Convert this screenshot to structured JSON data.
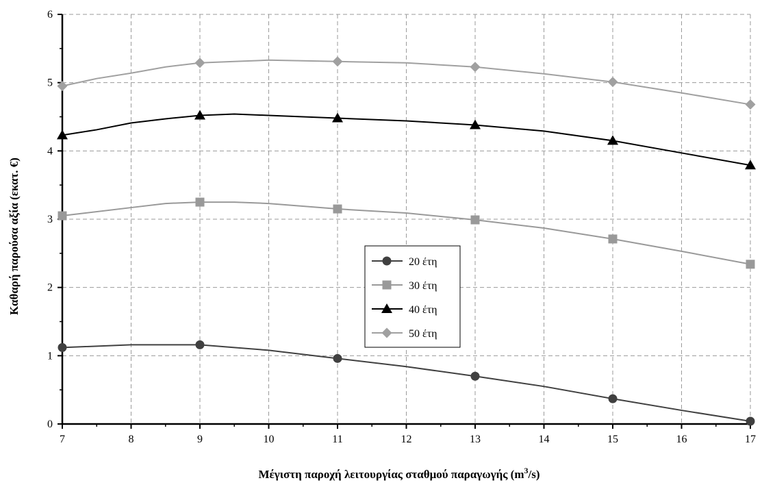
{
  "chart_data": {
    "type": "line",
    "xlabel": "Μέγιστη παροχή λειτουργίας σταθμού παραγωγής (m",
    "xlabel_sup": "3",
    "xlabel_tail": "/s)",
    "ylabel": "Καθαρή παρούσα αξία (εκατ. €)",
    "xlim": [
      7,
      17
    ],
    "ylim": [
      0,
      6
    ],
    "x_ticks": [
      7,
      8,
      9,
      10,
      11,
      12,
      13,
      14,
      15,
      16,
      17
    ],
    "y_ticks": [
      0,
      1,
      2,
      3,
      4,
      5,
      6
    ],
    "grid": true,
    "legend_position": "center",
    "series": [
      {
        "name": "20 έτη",
        "color": "#404040",
        "marker": "circle",
        "x": [
          7,
          8,
          8.5,
          9,
          10,
          11,
          12,
          13,
          14,
          15,
          16,
          17
        ],
        "y": [
          1.12,
          1.16,
          1.16,
          1.16,
          1.08,
          0.96,
          0.84,
          0.7,
          0.55,
          0.37,
          0.2,
          0.04
        ],
        "marker_x": [
          7,
          9,
          11,
          13,
          15,
          17
        ]
      },
      {
        "name": "30 έτη",
        "color": "#999999",
        "marker": "square",
        "x": [
          7,
          8,
          8.5,
          9,
          9.5,
          10,
          11,
          12,
          13,
          14,
          15,
          16,
          17
        ],
        "y": [
          3.05,
          3.17,
          3.23,
          3.25,
          3.25,
          3.23,
          3.15,
          3.09,
          2.99,
          2.87,
          2.71,
          2.53,
          2.34
        ],
        "marker_x": [
          7,
          9,
          11,
          13,
          15,
          17
        ]
      },
      {
        "name": "40 έτη",
        "color": "#000000",
        "marker": "triangle",
        "x": [
          7,
          7.5,
          8,
          8.5,
          9,
          9.5,
          10,
          11,
          12,
          13,
          14,
          15,
          16,
          17
        ],
        "y": [
          4.23,
          4.31,
          4.41,
          4.47,
          4.52,
          4.54,
          4.52,
          4.48,
          4.44,
          4.38,
          4.29,
          4.15,
          3.97,
          3.79
        ],
        "marker_x": [
          7,
          9,
          11,
          13,
          15,
          17
        ]
      },
      {
        "name": "50 έτη",
        "color": "#a0a0a0",
        "marker": "diamond",
        "x": [
          7,
          7.5,
          8,
          8.5,
          9,
          9.5,
          10,
          11,
          12,
          13,
          14,
          15,
          16,
          17
        ],
        "y": [
          4.95,
          5.06,
          5.14,
          5.23,
          5.29,
          5.31,
          5.33,
          5.31,
          5.29,
          5.23,
          5.13,
          5.01,
          4.85,
          4.68
        ],
        "marker_x": [
          7,
          9,
          11,
          13,
          15,
          17
        ]
      }
    ]
  }
}
